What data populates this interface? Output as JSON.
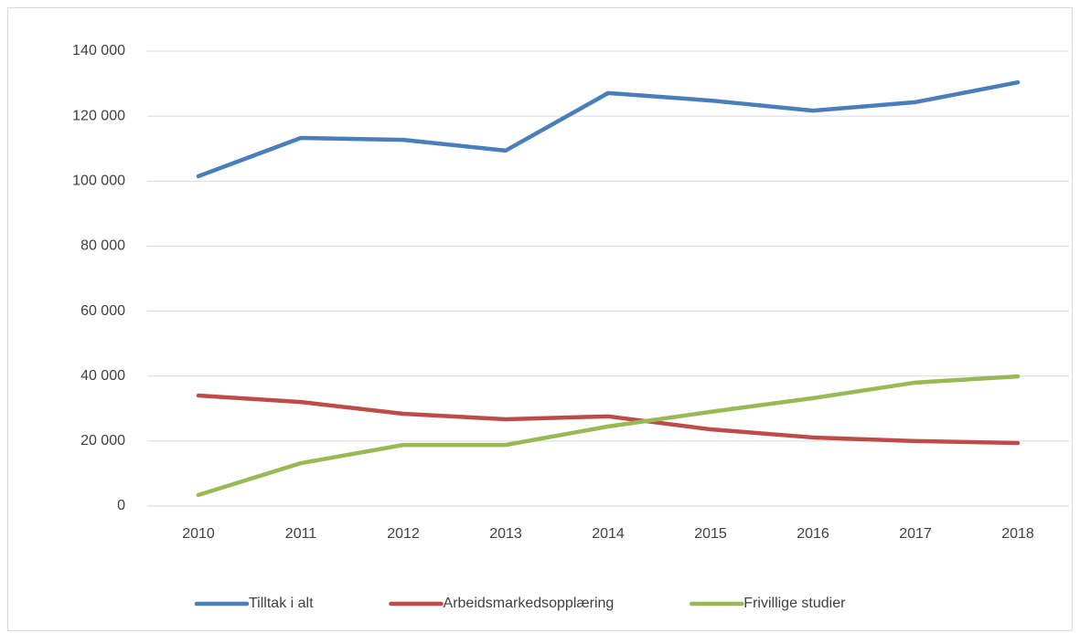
{
  "chart_data": {
    "type": "line",
    "categories": [
      "2010",
      "2011",
      "2012",
      "2013",
      "2014",
      "2015",
      "2016",
      "2017",
      "2018"
    ],
    "series": [
      {
        "name": "Tilltak i alt",
        "color": "#4a7ebb",
        "values": [
          101500,
          113300,
          112700,
          109400,
          127100,
          124800,
          121700,
          124300,
          130400
        ]
      },
      {
        "name": "Arbeidsmarkedsopplæring",
        "color": "#be4b48",
        "values": [
          34000,
          32000,
          28400,
          26700,
          27600,
          23600,
          21100,
          20000,
          19400
        ]
      },
      {
        "name": "Frivillige studier",
        "color": "#98b954",
        "values": [
          3400,
          13200,
          18800,
          18800,
          24500,
          29000,
          33200,
          38000,
          39900
        ]
      }
    ],
    "ylim": [
      0,
      140000
    ],
    "yticks": [
      0,
      {
        "value": 20000,
        "label": "20 000"
      },
      {
        "value": 40000,
        "label": "40 000"
      },
      {
        "value": 60000,
        "label": "60 000"
      },
      {
        "value": 80000,
        "label": "80 000"
      },
      {
        "value": 100000,
        "label": "100 000"
      },
      {
        "value": 120000,
        "label": "120 000"
      },
      {
        "value": 140000,
        "label": "140 000"
      }
    ],
    "grid": true,
    "legend": "bottom"
  }
}
